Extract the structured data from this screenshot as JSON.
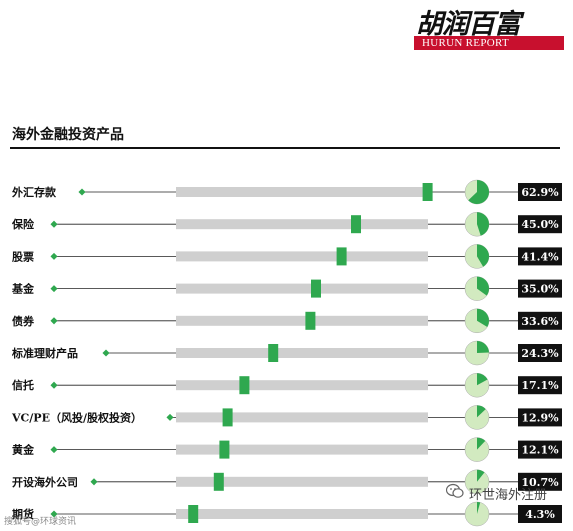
{
  "brand": {
    "name_cn": "胡润百富",
    "name_en": "HURUN REPORT",
    "bar_color": "#c8102e"
  },
  "watermark": {
    "left_text": "搜狐号@环球资讯",
    "right_text": "环世海外注册",
    "icon": "wechat-icon"
  },
  "colors": {
    "marker": "#2fa84f",
    "track": "#cfcfcf",
    "pie_fill": "#2fa84f",
    "pie_bg": "#d2eac0",
    "value_box": "#111111"
  },
  "chart_data": {
    "type": "bar",
    "title": "海外金融投资产品",
    "xlabel": "",
    "ylabel": "",
    "xlim": [
      0,
      100
    ],
    "grid": false,
    "legend": "none",
    "categories": [
      "外汇存款",
      "保险",
      "股票",
      "基金",
      "债券",
      "标准理财产品",
      "信托",
      "VC/PE（风投/股权投资）",
      "黄金",
      "开设海外公司",
      "期货"
    ],
    "values": [
      62.9,
      45.0,
      41.4,
      35.0,
      33.6,
      24.3,
      17.1,
      12.9,
      12.1,
      10.7,
      4.3
    ],
    "value_labels": [
      "62.9%",
      "45.0%",
      "41.4%",
      "35.0%",
      "33.6%",
      "24.3%",
      "17.1%",
      "12.9%",
      "12.1%",
      "10.7%",
      "4.3%"
    ]
  }
}
